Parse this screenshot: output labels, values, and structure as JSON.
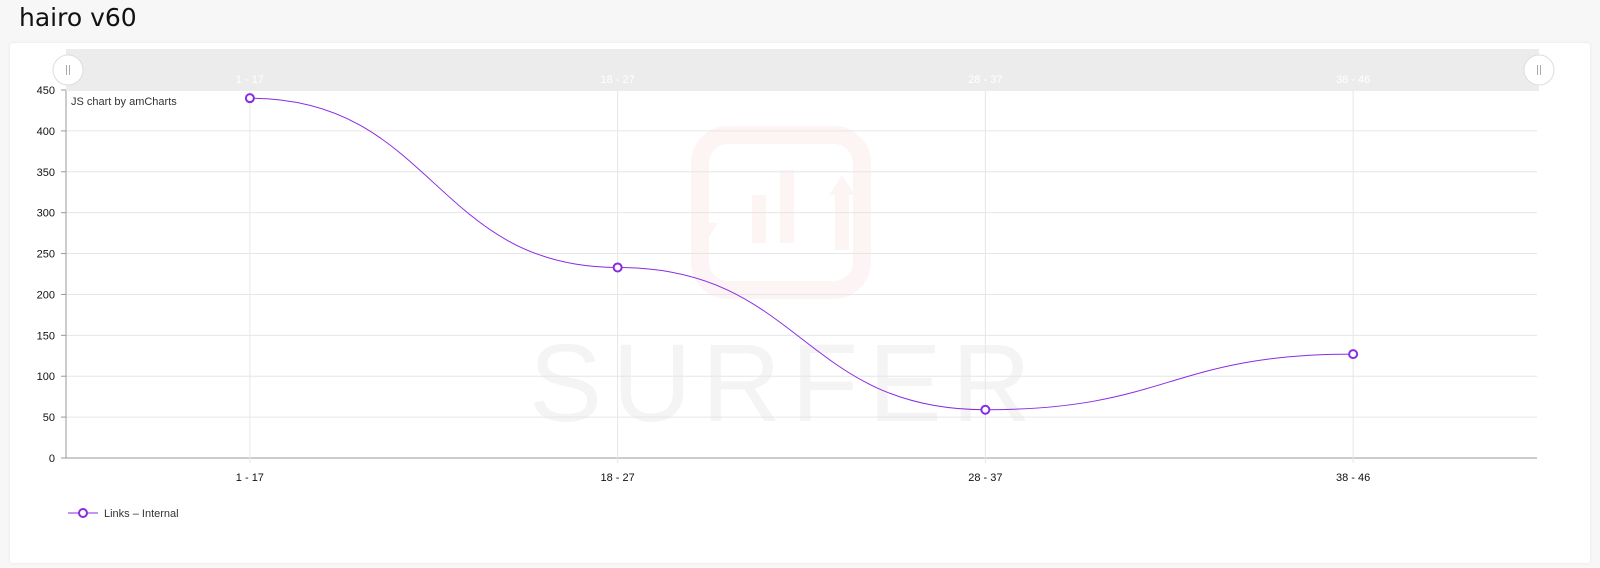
{
  "page": {
    "title": "hairo v60"
  },
  "chart_data": {
    "type": "line",
    "smoothed": true,
    "categories": [
      "1 - 17",
      "18 - 27",
      "28 - 37",
      "38 - 46"
    ],
    "series": [
      {
        "name": "Links – Internal",
        "values": [
          440,
          233,
          59,
          127
        ],
        "color": "#8a2be2"
      }
    ],
    "ylim": [
      0,
      450
    ],
    "yticks": [
      0,
      50,
      100,
      150,
      200,
      250,
      300,
      350,
      400,
      450
    ],
    "grid": true,
    "legend": "bottom-left",
    "credit": "JS chart by amCharts",
    "watermark": "SURFER",
    "scrollbar": {
      "visible": true,
      "category_labels": [
        "1 - 17",
        "18 - 27",
        "28 - 37",
        "38 - 46"
      ]
    }
  }
}
